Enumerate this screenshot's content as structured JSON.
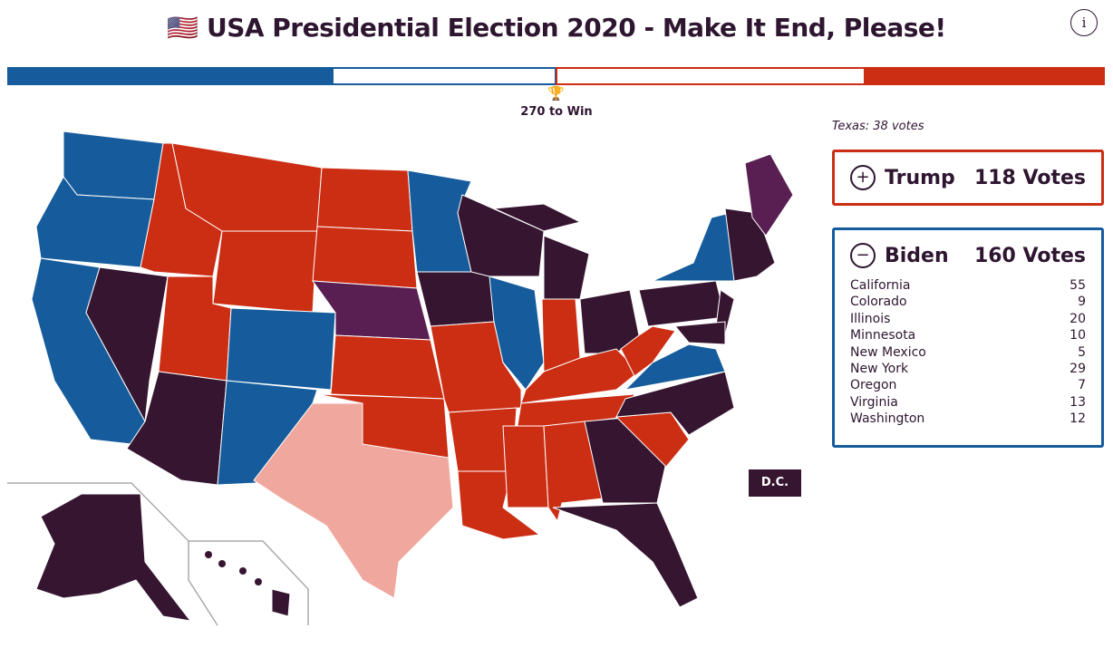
{
  "header": {
    "flag": "🇺🇸",
    "title": "USA Presidential Election 2020 - Make It End, Please!",
    "info_label": "i"
  },
  "progress": {
    "total": 538,
    "biden_votes": 160,
    "trump_votes": 118,
    "goal_label": "270 to Win"
  },
  "colors": {
    "biden": "#165c9c",
    "trump": "#cc2e14",
    "undecided": "#361530",
    "split": "#5a1f52",
    "hover": "#f0a79e"
  },
  "hover_info": "Texas: 38 votes",
  "trump": {
    "toggle": "+",
    "name": "Trump",
    "votes_label": "118 Votes"
  },
  "biden": {
    "toggle": "−",
    "name": "Biden",
    "votes_label": "160 Votes",
    "states": [
      {
        "name": "California",
        "votes": "55"
      },
      {
        "name": "Colorado",
        "votes": "9"
      },
      {
        "name": "Illinois",
        "votes": "20"
      },
      {
        "name": "Minnesota",
        "votes": "10"
      },
      {
        "name": "New Mexico",
        "votes": "5"
      },
      {
        "name": "New York",
        "votes": "29"
      },
      {
        "name": "Oregon",
        "votes": "7"
      },
      {
        "name": "Virginia",
        "votes": "13"
      },
      {
        "name": "Washington",
        "votes": "12"
      }
    ]
  },
  "dc_label": "D.C."
}
